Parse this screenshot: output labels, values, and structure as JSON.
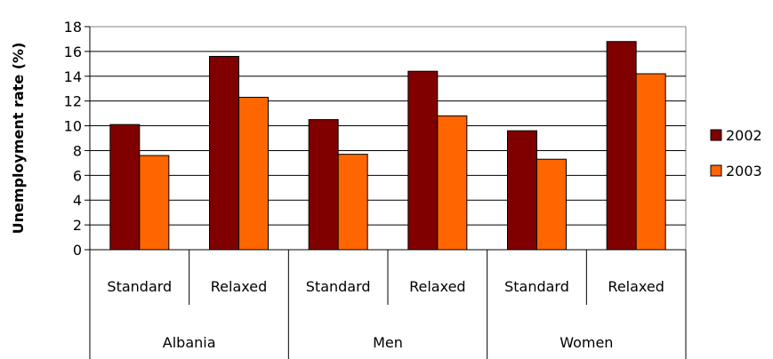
{
  "chart_data": {
    "type": "bar",
    "title": "",
    "ylabel": "Unemployment rate (%)",
    "xlabel": "",
    "ylim": [
      0,
      18
    ],
    "yticks": [
      0,
      2,
      4,
      6,
      8,
      10,
      12,
      14,
      16,
      18
    ],
    "grid": true,
    "legend_position": "right",
    "categories": [
      "Standard",
      "Relaxed",
      "Standard",
      "Relaxed",
      "Standard",
      "Relaxed"
    ],
    "groups": [
      {
        "label": "Albania",
        "categories": [
          "Standard",
          "Relaxed"
        ]
      },
      {
        "label": "Men",
        "categories": [
          "Standard",
          "Relaxed"
        ]
      },
      {
        "label": "Women",
        "categories": [
          "Standard",
          "Relaxed"
        ]
      }
    ],
    "series": [
      {
        "name": "2002",
        "color": "#800000",
        "values": [
          10.1,
          15.6,
          10.5,
          14.4,
          9.6,
          16.8
        ]
      },
      {
        "name": "2003",
        "color": "#FF6600",
        "values": [
          7.6,
          12.3,
          7.7,
          10.8,
          7.3,
          14.2
        ]
      }
    ]
  }
}
